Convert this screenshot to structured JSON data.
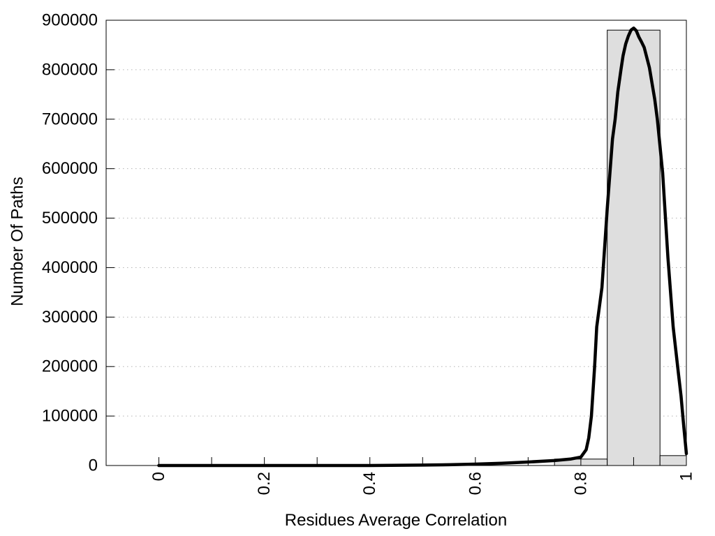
{
  "chart_data": {
    "type": "bar",
    "subtype": "histogram-with-fit-curve",
    "title": "",
    "xlabel": "Residues Average Correlation",
    "ylabel": "Number Of Paths",
    "xlim": [
      -0.1,
      1.0
    ],
    "ylim": [
      0,
      900000
    ],
    "grid": "horizontal-dotted-at-y-major-ticks",
    "legend": "none",
    "x_tick_label_rotation": -90,
    "x_minor_tick_step": 0.1,
    "x_major_ticks": [
      0,
      0.2,
      0.4,
      0.6,
      0.8,
      1
    ],
    "x_major_tick_labels": [
      "0",
      "0.2",
      "0.4",
      "0.6",
      "0.8",
      "1"
    ],
    "y_ticks": [
      0,
      100000,
      200000,
      300000,
      400000,
      500000,
      600000,
      700000,
      800000,
      900000
    ],
    "y_tick_labels": [
      "0",
      "100000",
      "200000",
      "300000",
      "400000",
      "500000",
      "600000",
      "700000",
      "800000",
      "900000"
    ],
    "bars": {
      "bin_width": 0.1,
      "fill_color": "#dedede",
      "stroke_color": "#000000",
      "items": [
        {
          "x0": 0.75,
          "x1": 0.85,
          "count": 13000
        },
        {
          "x0": 0.85,
          "x1": 0.95,
          "count": 880000
        },
        {
          "x0": 0.95,
          "x1": 1.0,
          "count": 20000
        }
      ]
    },
    "curve": {
      "name": "fit-curve",
      "color": "#000000",
      "peak": {
        "x": 0.9,
        "y": 884000
      },
      "points": [
        [
          0,
          0
        ],
        [
          0.1,
          0
        ],
        [
          0.2,
          0
        ],
        [
          0.3,
          0
        ],
        [
          0.4,
          0
        ],
        [
          0.5,
          800
        ],
        [
          0.55,
          1500
        ],
        [
          0.6,
          2800
        ],
        [
          0.65,
          4500
        ],
        [
          0.7,
          7000
        ],
        [
          0.75,
          10000
        ],
        [
          0.78,
          13000
        ],
        [
          0.8,
          17000
        ],
        [
          0.81,
          32000
        ],
        [
          0.815,
          56000
        ],
        [
          0.82,
          100000
        ],
        [
          0.826,
          200000
        ],
        [
          0.83,
          280000
        ],
        [
          0.84,
          360000
        ],
        [
          0.85,
          520000
        ],
        [
          0.86,
          660000
        ],
        [
          0.865,
          700000
        ],
        [
          0.87,
          755000
        ],
        [
          0.876,
          800000
        ],
        [
          0.88,
          828000
        ],
        [
          0.885,
          852000
        ],
        [
          0.89,
          868000
        ],
        [
          0.895,
          880000
        ],
        [
          0.9,
          884000
        ],
        [
          0.905,
          879000
        ],
        [
          0.91,
          866000
        ],
        [
          0.915,
          856000
        ],
        [
          0.92,
          845000
        ],
        [
          0.93,
          804000
        ],
        [
          0.94,
          740000
        ],
        [
          0.945,
          700000
        ],
        [
          0.955,
          592000
        ],
        [
          0.965,
          420000
        ],
        [
          0.975,
          280000
        ],
        [
          0.985,
          185000
        ],
        [
          0.99,
          140000
        ],
        [
          0.995,
          80000
        ],
        [
          1.0,
          24000
        ]
      ]
    },
    "colors": {
      "grid": "#b3b3b3",
      "frame": "#000000",
      "background": "#ffffff",
      "bar_fill": "#dedede",
      "curve": "#000000"
    }
  }
}
